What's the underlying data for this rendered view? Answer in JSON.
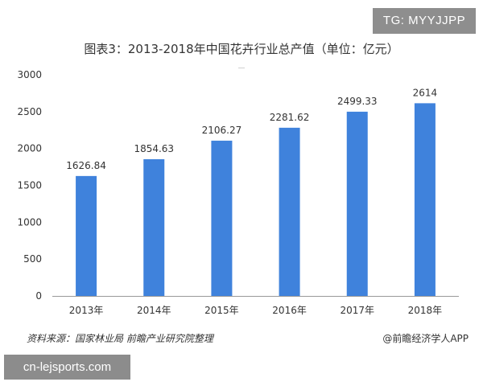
{
  "badges": {
    "top_right": "TG: MYYJJPP",
    "bottom_left": "cn-lejsports.com"
  },
  "footer": {
    "source": "资料来源：国家林业局 前瞻产业研究院整理",
    "credit": "@前瞻经济学人APP"
  },
  "colors": {
    "bar": "#3f82dc",
    "axis": "#999999",
    "text": "#333333"
  },
  "chart_data": {
    "type": "bar",
    "title": "图表3：2013-2018年中国花卉行业总产值（单位：亿元）",
    "xlabel": "",
    "ylabel": "",
    "categories": [
      "2013年",
      "2014年",
      "2015年",
      "2016年",
      "2017年",
      "2018年"
    ],
    "values": [
      1626.84,
      1854.63,
      2106.27,
      2281.62,
      2499.33,
      2614
    ],
    "labels": [
      "1626.84",
      "1854.63",
      "2106.27",
      "2281.62",
      "2499.33",
      "2614"
    ],
    "ylim": [
      0,
      3000
    ],
    "yticks": [
      0,
      500,
      1000,
      1500,
      2000,
      2500,
      3000
    ],
    "grid": false,
    "legend": "none"
  }
}
